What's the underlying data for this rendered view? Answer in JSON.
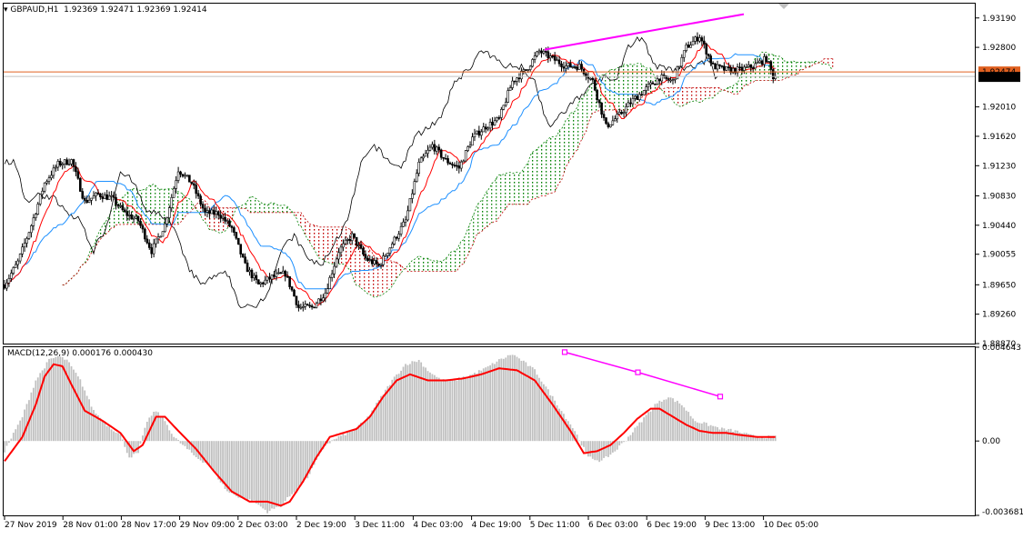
{
  "header": {
    "symbol_label": "GBPAUD,H1",
    "ohlc": "1.92369 1.92471 1.92369 1.92414"
  },
  "price_axis": {
    "ticks": [
      "1.93190",
      "1.92800",
      "1.92010",
      "1.91620",
      "1.91230",
      "1.90830",
      "1.90440",
      "1.90055",
      "1.89650",
      "1.89260",
      "1.88870"
    ],
    "current_price_label": "1.92414",
    "ask_label": "1.92474"
  },
  "macd_panel": {
    "label": "MACD(12,26,9) 0.000176 0.000430",
    "ticks": [
      "0.004643",
      "0.00",
      "-0.003681"
    ]
  },
  "time_axis": {
    "labels": [
      "27 Nov 2019",
      "28 Nov 01:00",
      "28 Nov 17:00",
      "29 Nov 09:00",
      "2 Dec 03:00",
      "2 Dec 19:00",
      "3 Dec 11:00",
      "4 Dec 03:00",
      "4 Dec 19:00",
      "5 Dec 11:00",
      "6 Dec 03:00",
      "6 Dec 19:00",
      "9 Dec 13:00",
      "10 Dec 05:00"
    ]
  },
  "colors": {
    "background": "#ffffff",
    "candles": "#000000",
    "tenkan": "#ff0000",
    "kijun": "#1e90ff",
    "chikou": "#000000",
    "kumo_bull": "#008000",
    "kumo_bear": "#c00000",
    "trendline": "#ff00ff",
    "macd_hist": "#c0c0c0",
    "macd_signal": "#ff0000",
    "price_line": "#e06020",
    "price_marker": "#000000"
  },
  "chart_data": [
    {
      "type": "candlestick",
      "panel": "main",
      "indicators": [
        "Ichimoku Kinko Hyo (tenkan, kijun, chikou, kumo cloud)",
        "manual trendline"
      ],
      "ylim": [
        1.8887,
        1.9338
      ],
      "current_price": 1.92414,
      "ask_price": 1.92474,
      "close_anchors": [
        [
          0,
          1.8965
        ],
        [
          6,
          1.8995
        ],
        [
          12,
          1.9044
        ],
        [
          18,
          1.91
        ],
        [
          24,
          1.9125
        ],
        [
          30,
          1.913
        ],
        [
          36,
          1.9075
        ],
        [
          42,
          1.9085
        ],
        [
          48,
          1.908
        ],
        [
          54,
          1.906
        ],
        [
          60,
          1.905
        ],
        [
          66,
          1.901
        ],
        [
          72,
          1.9045
        ],
        [
          78,
          1.9118
        ],
        [
          84,
          1.91
        ],
        [
          90,
          1.906
        ],
        [
          96,
          1.906
        ],
        [
          102,
          1.904
        ],
        [
          108,
          1.899
        ],
        [
          114,
          1.8965
        ],
        [
          120,
          1.8975
        ],
        [
          126,
          1.898
        ],
        [
          132,
          1.8935
        ],
        [
          138,
          1.8935
        ],
        [
          144,
          1.8955
        ],
        [
          150,
          1.901
        ],
        [
          156,
          1.903
        ],
        [
          162,
          1.9
        ],
        [
          168,
          1.899
        ],
        [
          174,
          1.902
        ],
        [
          180,
          1.905
        ],
        [
          186,
          1.9125
        ],
        [
          192,
          1.915
        ],
        [
          198,
          1.913
        ],
        [
          204,
          1.912
        ],
        [
          210,
          1.916
        ],
        [
          216,
          1.9175
        ],
        [
          222,
          1.9185
        ],
        [
          228,
          1.9235
        ],
        [
          234,
          1.925
        ],
        [
          240,
          1.9275
        ],
        [
          246,
          1.9265
        ],
        [
          252,
          1.9255
        ],
        [
          258,
          1.9255
        ],
        [
          264,
          1.9235
        ],
        [
          270,
          1.9175
        ],
        [
          276,
          1.919
        ],
        [
          282,
          1.921
        ],
        [
          288,
          1.9225
        ],
        [
          294,
          1.924
        ],
        [
          300,
          1.9235
        ],
        [
          306,
          1.928
        ],
        [
          312,
          1.9295
        ],
        [
          318,
          1.9255
        ],
        [
          324,
          1.925
        ],
        [
          330,
          1.925
        ],
        [
          336,
          1.9255
        ],
        [
          342,
          1.9265
        ],
        [
          345,
          1.92414
        ]
      ],
      "trendline": {
        "from": [
          599,
          1.9277
        ],
        "to": [
          818,
          1.9324
        ]
      }
    },
    {
      "type": "bar+line",
      "panel": "macd",
      "indicator": "MACD(12,26,9)",
      "macd_value": 0.000176,
      "signal_value": 0.00043,
      "ylim": [
        -0.003681,
        0.004643
      ],
      "histogram_anchors": [
        [
          0,
          -0.0005
        ],
        [
          8,
          0.0012
        ],
        [
          14,
          0.003
        ],
        [
          20,
          0.004
        ],
        [
          24,
          0.0042
        ],
        [
          28,
          0.004
        ],
        [
          34,
          0.003
        ],
        [
          40,
          0.0015
        ],
        [
          46,
          0.0008
        ],
        [
          52,
          0.0003
        ],
        [
          56,
          -0.0008
        ],
        [
          60,
          -0.0006
        ],
        [
          64,
          0.001
        ],
        [
          68,
          0.0015
        ],
        [
          72,
          0.001
        ],
        [
          76,
          0.0002
        ],
        [
          80,
          -0.0002
        ],
        [
          86,
          -0.0008
        ],
        [
          92,
          -0.0012
        ],
        [
          100,
          -0.0025
        ],
        [
          106,
          -0.0028
        ],
        [
          112,
          -0.003
        ],
        [
          118,
          -0.0035
        ],
        [
          124,
          -0.0032
        ],
        [
          130,
          -0.0025
        ],
        [
          136,
          -0.0018
        ],
        [
          140,
          -0.001
        ],
        [
          144,
          -0.0002
        ],
        [
          150,
          0.0002
        ],
        [
          156,
          0.0005
        ],
        [
          162,
          0.001
        ],
        [
          168,
          0.002
        ],
        [
          174,
          0.003
        ],
        [
          180,
          0.0038
        ],
        [
          186,
          0.004
        ],
        [
          190,
          0.0035
        ],
        [
          196,
          0.003
        ],
        [
          202,
          0.003
        ],
        [
          210,
          0.0033
        ],
        [
          216,
          0.0036
        ],
        [
          222,
          0.004
        ],
        [
          228,
          0.0043
        ],
        [
          232,
          0.004
        ],
        [
          238,
          0.0035
        ],
        [
          244,
          0.0025
        ],
        [
          250,
          0.0015
        ],
        [
          256,
          0.0005
        ],
        [
          262,
          -0.0008
        ],
        [
          268,
          -0.001
        ],
        [
          274,
          -0.0005
        ],
        [
          280,
          0.0002
        ],
        [
          286,
          0.001
        ],
        [
          292,
          0.0018
        ],
        [
          298,
          0.0022
        ],
        [
          304,
          0.0018
        ],
        [
          310,
          0.001
        ],
        [
          316,
          0.0008
        ],
        [
          322,
          0.0006
        ],
        [
          328,
          0.0005
        ],
        [
          334,
          0.0003
        ],
        [
          338,
          0.0002
        ]
      ],
      "signal_anchors": [
        [
          0,
          -0.001
        ],
        [
          8,
          0.0002
        ],
        [
          14,
          0.0018
        ],
        [
          18,
          0.0032
        ],
        [
          22,
          0.0038
        ],
        [
          26,
          0.0037
        ],
        [
          30,
          0.0028
        ],
        [
          36,
          0.0015
        ],
        [
          44,
          0.001
        ],
        [
          52,
          0.0004
        ],
        [
          58,
          -0.0005
        ],
        [
          62,
          -0.0002
        ],
        [
          68,
          0.0012
        ],
        [
          72,
          0.0012
        ],
        [
          78,
          0.0005
        ],
        [
          86,
          -0.0004
        ],
        [
          94,
          -0.0015
        ],
        [
          102,
          -0.0025
        ],
        [
          110,
          -0.003
        ],
        [
          118,
          -0.003
        ],
        [
          124,
          -0.0032
        ],
        [
          128,
          -0.003
        ],
        [
          134,
          -0.002
        ],
        [
          140,
          -0.0008
        ],
        [
          146,
          0.0002
        ],
        [
          152,
          0.0004
        ],
        [
          158,
          0.0006
        ],
        [
          164,
          0.0012
        ],
        [
          170,
          0.0022
        ],
        [
          176,
          0.003
        ],
        [
          182,
          0.0033
        ],
        [
          190,
          0.003
        ],
        [
          198,
          0.003
        ],
        [
          206,
          0.0031
        ],
        [
          214,
          0.0033
        ],
        [
          222,
          0.0036
        ],
        [
          230,
          0.0035
        ],
        [
          238,
          0.003
        ],
        [
          246,
          0.0018
        ],
        [
          254,
          0.0005
        ],
        [
          260,
          -0.0006
        ],
        [
          266,
          -0.0005
        ],
        [
          272,
          -0.0002
        ],
        [
          278,
          0.0004
        ],
        [
          284,
          0.0011
        ],
        [
          290,
          0.0016
        ],
        [
          294,
          0.0016
        ],
        [
          300,
          0.0012
        ],
        [
          306,
          0.0008
        ],
        [
          312,
          0.0005
        ],
        [
          318,
          0.0004
        ],
        [
          324,
          0.0004
        ],
        [
          330,
          0.0003
        ],
        [
          338,
          0.0002
        ]
      ],
      "trendline": {
        "from": [
          621,
          0.0044
        ],
        "to": [
          792,
          0.0022
        ]
      }
    }
  ]
}
